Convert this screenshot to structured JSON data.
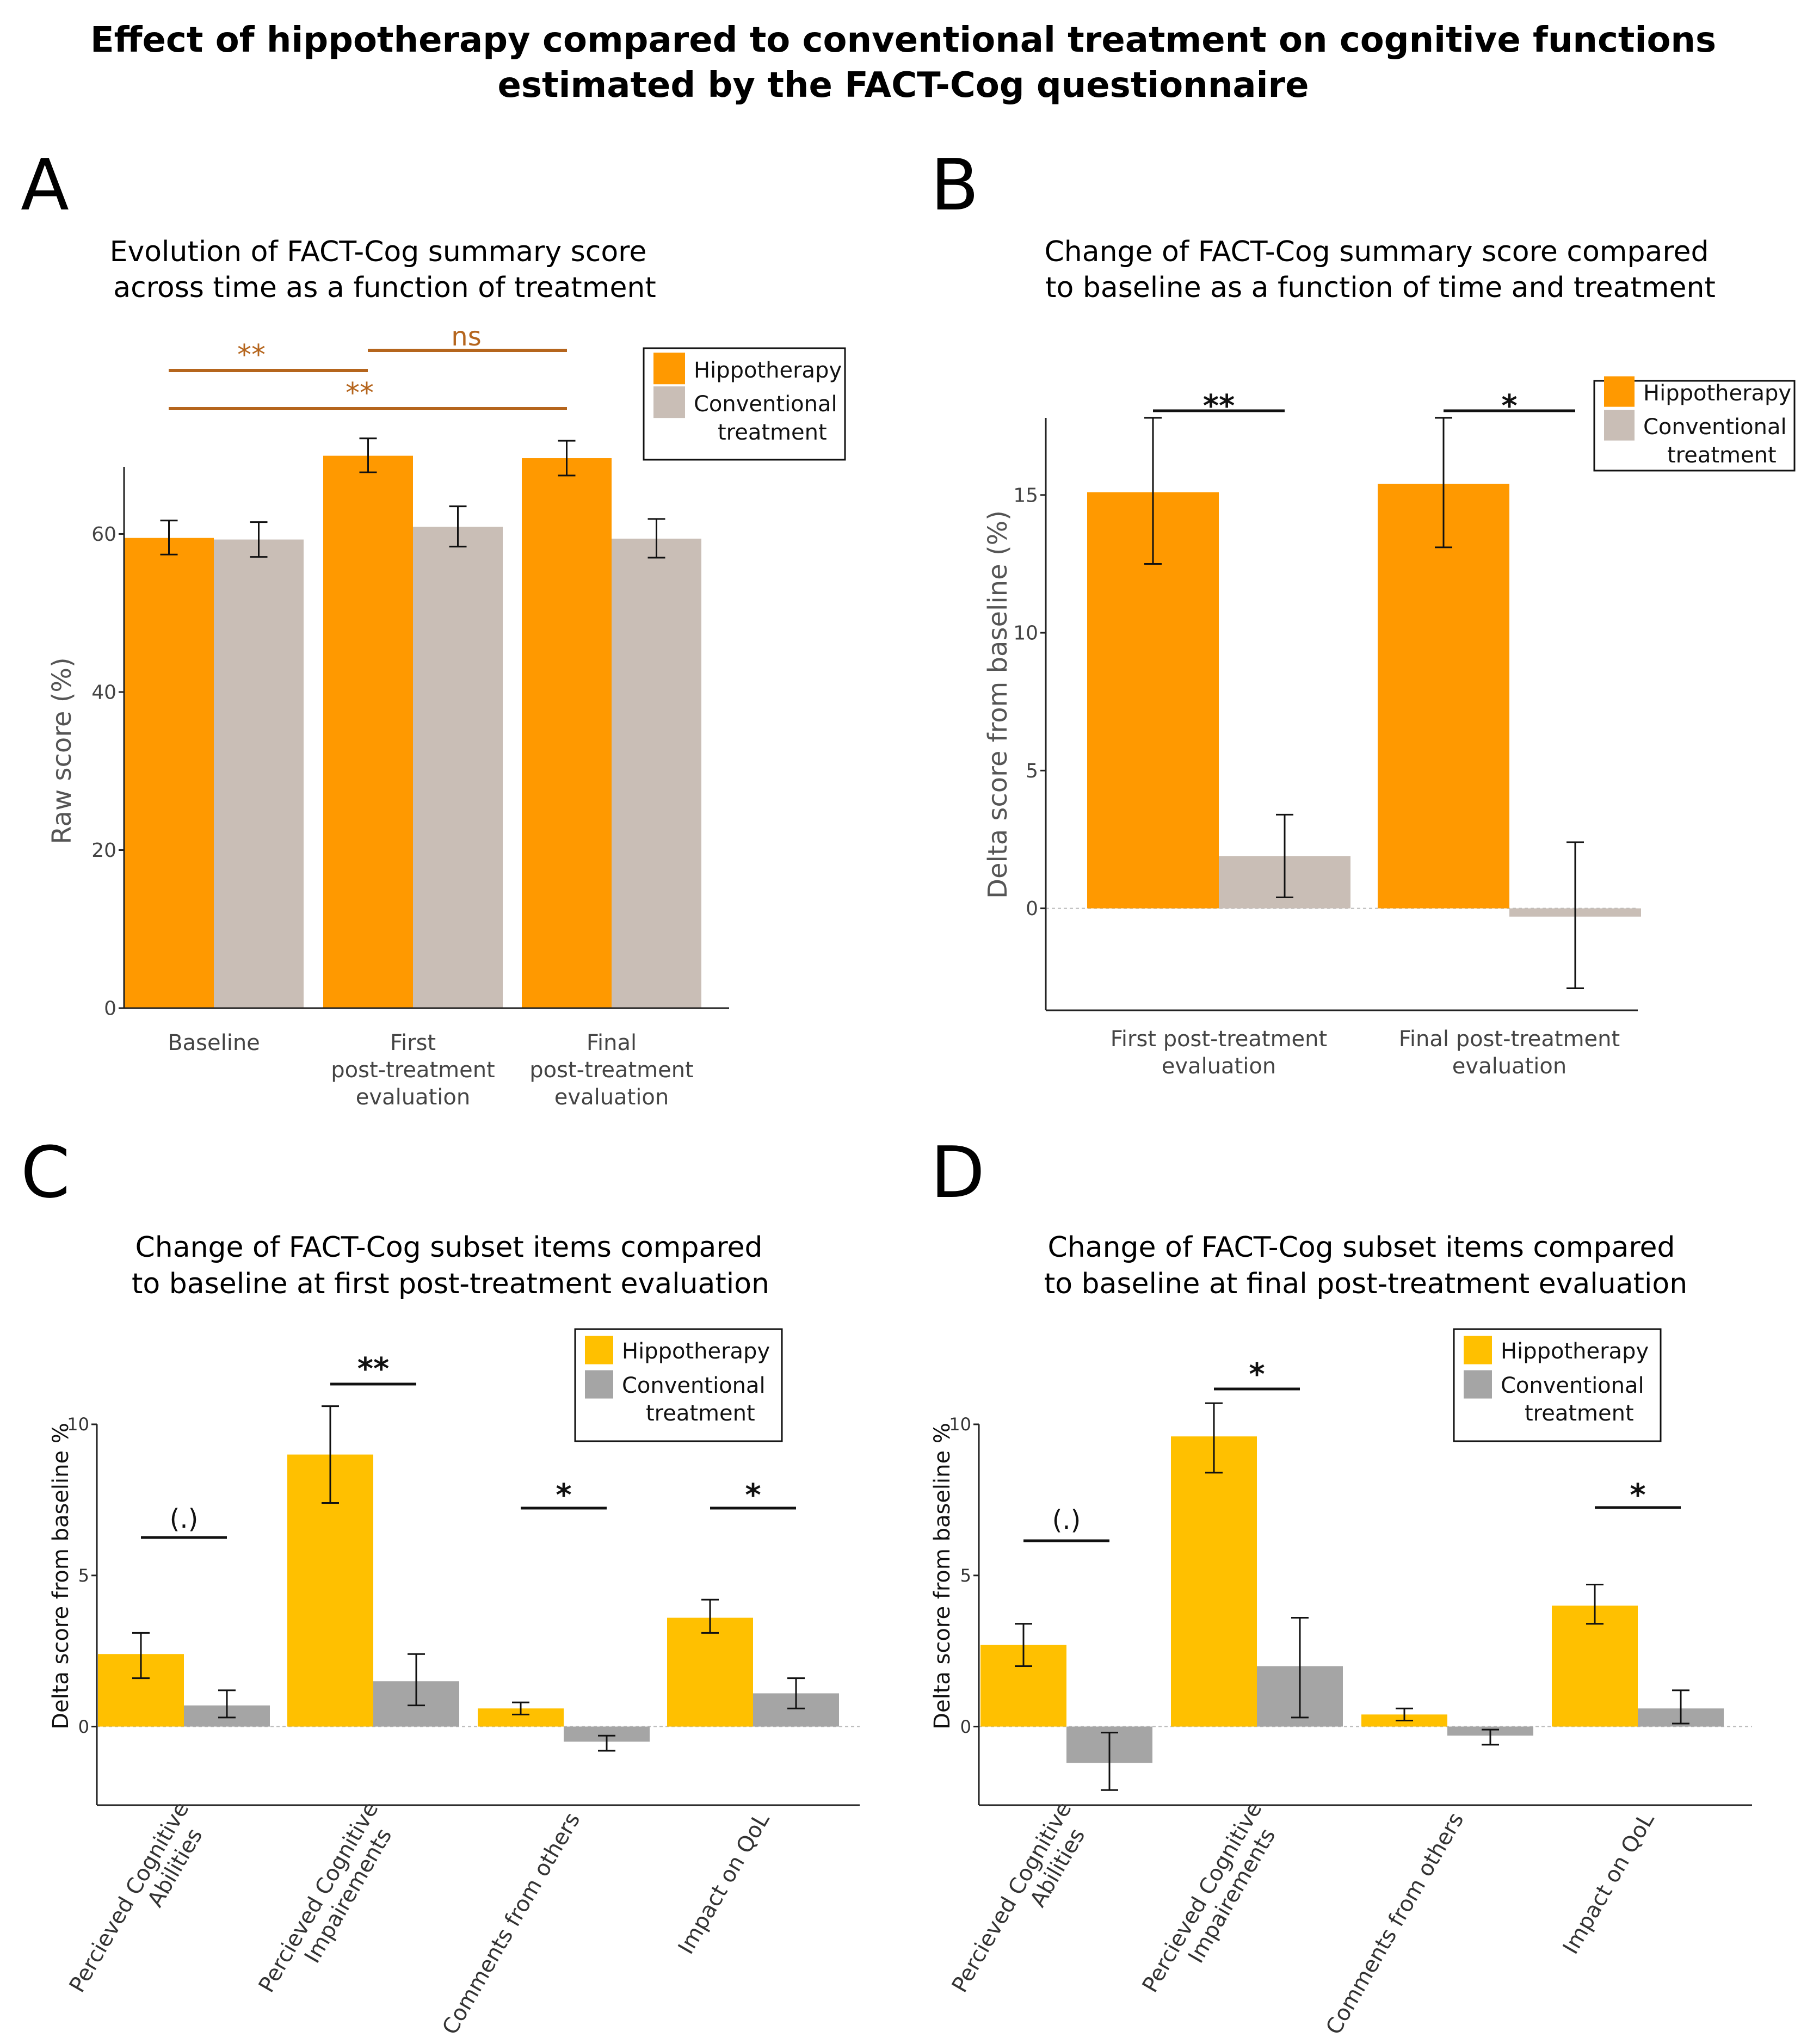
{
  "figure": {
    "title_line1": "Effect of hippotherapy compared to conventional treatment on cognitive functions",
    "title_line2": "estimated by the FACT-Cog questionnaire"
  },
  "colors": {
    "hippo_orange": "#FF9900",
    "conv_beige": "#C9BEB6",
    "hippo_yellow": "#FFC000",
    "conv_gray": "#A5A5A5",
    "sig_orange": "#B5651D",
    "axis": "#222222"
  },
  "chart_data": [
    {
      "panel": "A",
      "type": "bar",
      "title_line1": "Evolution of FACT-Cog summary score",
      "title_line2": "across time as a function of treatment",
      "ylabel": "Raw score (%)",
      "ylim": [
        0,
        68.5
      ],
      "yticks": [
        0,
        20,
        40,
        60
      ],
      "categories": [
        [
          "Baseline"
        ],
        [
          "First",
          "post-treatment",
          "evaluation"
        ],
        [
          "Final",
          "post-treatment",
          "evaluation"
        ]
      ],
      "series": [
        {
          "name": "Hippotherapy",
          "values": [
            59.5,
            69.9,
            69.6
          ],
          "err_low": [
            57.4,
            67.8,
            67.4
          ],
          "err_high": [
            61.7,
            72.1,
            71.8
          ]
        },
        {
          "name": "Conventional treatment",
          "values": [
            59.3,
            60.9,
            59.4
          ],
          "err_low": [
            57.1,
            58.4,
            57.0
          ],
          "err_high": [
            61.5,
            63.5,
            61.9
          ]
        }
      ],
      "legend": {
        "entries": [
          "Hippotherapy",
          "Conventional",
          "treatment"
        ]
      },
      "significance": [
        {
          "label": "**",
          "from": "Baseline",
          "to": "First post-treatment evaluation"
        },
        {
          "label": "ns",
          "from": "First post-treatment evaluation",
          "to": "Final post-treatment evaluation"
        },
        {
          "label": "**",
          "from": "Baseline",
          "to": "Final post-treatment evaluation"
        }
      ]
    },
    {
      "panel": "B",
      "type": "bar",
      "title_line1": "Change of FACT-Cog summary score compared",
      "title_line2": "to baseline as a function of time and treatment",
      "ylabel": "Delta score from baseline (%)",
      "ylim": [
        -3.7,
        17.8
      ],
      "yticks": [
        0,
        5,
        10,
        15
      ],
      "categories": [
        [
          "First post-treatment",
          "evaluation"
        ],
        [
          "Final post-treatment",
          "evaluation"
        ]
      ],
      "series": [
        {
          "name": "Hippotherapy",
          "values": [
            15.1,
            15.4
          ],
          "err_low": [
            12.5,
            13.1
          ],
          "err_high": [
            17.8,
            17.8
          ]
        },
        {
          "name": "Conventional treatment",
          "values": [
            1.9,
            -0.3
          ],
          "err_low": [
            0.4,
            -2.9
          ],
          "err_high": [
            3.4,
            2.4
          ]
        }
      ],
      "legend": {
        "entries": [
          "Hippotherapy",
          "Conventional",
          "treatment"
        ]
      },
      "significance": [
        {
          "label": "**",
          "category": "First post-treatment evaluation"
        },
        {
          "label": "*",
          "category": "Final post-treatment evaluation"
        }
      ]
    },
    {
      "panel": "C",
      "type": "bar",
      "title_line1": "Change of FACT-Cog subset items compared",
      "title_line2": "to baseline at first post-treatment evaluation",
      "ylabel": "Delta score from baseline %",
      "ylim": [
        -2.6,
        10.0
      ],
      "yticks": [
        0,
        5,
        10
      ],
      "categories": [
        [
          "Percieved Cognitive",
          "Abilities"
        ],
        [
          "Percieved Cognitive",
          "Impairements"
        ],
        [
          "Comments from others"
        ],
        [
          "Impact on QoL"
        ]
      ],
      "series": [
        {
          "name": "Hippotherapy",
          "values": [
            2.4,
            9.0,
            0.6,
            3.6
          ],
          "err_low": [
            1.6,
            7.4,
            0.4,
            3.1
          ],
          "err_high": [
            3.1,
            10.6,
            0.8,
            4.2
          ]
        },
        {
          "name": "Conventional treatment",
          "values": [
            0.7,
            1.5,
            -0.5,
            1.1
          ],
          "err_low": [
            0.3,
            0.7,
            -0.8,
            0.6
          ],
          "err_high": [
            1.2,
            2.4,
            -0.3,
            1.6
          ]
        }
      ],
      "legend": {
        "entries": [
          "Hippotherapy",
          "Conventional",
          "treatment"
        ]
      },
      "significance": [
        {
          "label": "(.)",
          "category": "Percieved Cognitive Abilities"
        },
        {
          "label": "**",
          "category": "Percieved Cognitive Impairements"
        },
        {
          "label": "*",
          "category": "Comments from others"
        },
        {
          "label": "*",
          "category": "Impact on QoL"
        }
      ]
    },
    {
      "panel": "D",
      "type": "bar",
      "title_line1": "Change of FACT-Cog subset items compared",
      "title_line2": "to baseline at final post-treatment evaluation",
      "ylabel": "Delta score from baseline %",
      "ylim": [
        -2.6,
        10.0
      ],
      "yticks": [
        0,
        5,
        10
      ],
      "categories": [
        [
          "Percieved Cognitive",
          "Abilities"
        ],
        [
          "Percieved Cognitive",
          "Impairements"
        ],
        [
          "Comments from others"
        ],
        [
          "Impact on QoL"
        ]
      ],
      "series": [
        {
          "name": "Hippotherapy",
          "values": [
            2.7,
            9.6,
            0.4,
            4.0
          ],
          "err_low": [
            2.0,
            8.4,
            0.2,
            3.4
          ],
          "err_high": [
            3.4,
            10.7,
            0.6,
            4.7
          ]
        },
        {
          "name": "Conventional treatment",
          "values": [
            -1.2,
            2.0,
            -0.3,
            0.6
          ],
          "err_low": [
            -2.1,
            0.3,
            -0.6,
            0.1
          ],
          "err_high": [
            -0.2,
            3.6,
            -0.1,
            1.2
          ]
        }
      ],
      "legend": {
        "entries": [
          "Hippotherapy",
          "Conventional",
          "treatment"
        ]
      },
      "significance": [
        {
          "label": "(.)",
          "category": "Percieved Cognitive Abilities"
        },
        {
          "label": "*",
          "category": "Percieved Cognitive Impairements"
        },
        {
          "label": "*",
          "category": "Impact on QoL"
        }
      ]
    }
  ]
}
